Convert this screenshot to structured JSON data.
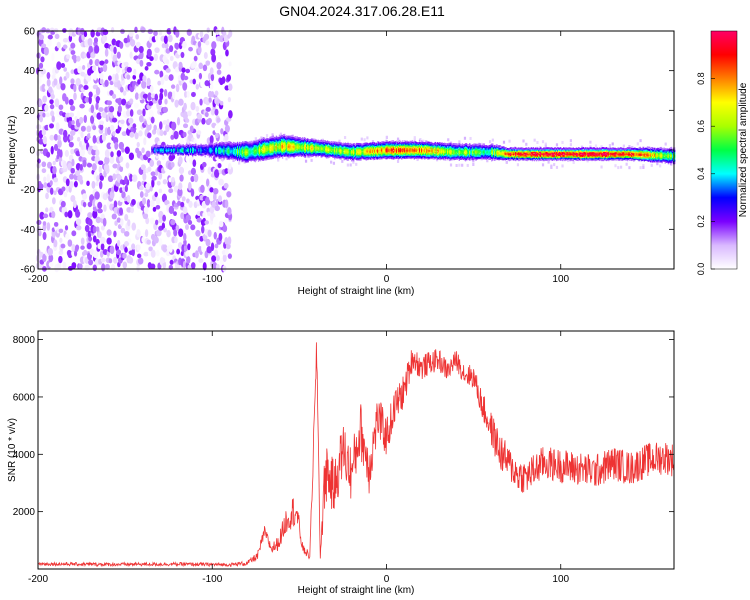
{
  "title": "GN04.2024.317.06.28.E11",
  "chart_data": [
    {
      "type": "heatmap",
      "xlabel": "Height of straight line (km)",
      "ylabel": "Frequency (Hz)",
      "xlim": [
        -200,
        165
      ],
      "ylim": [
        -60,
        60
      ],
      "xticks": [
        -200,
        -100,
        0,
        100
      ],
      "yticks": [
        -60,
        -40,
        -20,
        0,
        20,
        40,
        60
      ],
      "colorbar": {
        "label": "Normalized spectral amplitude",
        "range": [
          0,
          1
        ],
        "ticks": [
          0.0,
          0.2,
          0.4,
          0.6,
          0.8
        ],
        "tick_labels": [
          "0.0",
          "0.2",
          "0.4",
          "0.6",
          "0.8"
        ],
        "colors": [
          "#ffffff",
          "#d9b8ff",
          "#7a00ff",
          "#0000ff",
          "#00ffff",
          "#00ff44",
          "#aaff00",
          "#ffff00",
          "#ff7f00",
          "#ff0000",
          "#ff0066"
        ]
      },
      "noise_region": {
        "x": [
          -200,
          -90
        ],
        "y": [
          -60,
          60
        ],
        "amplitude": 0.15
      },
      "ridge": {
        "x": [
          -135,
          -120,
          -100,
          -80,
          -60,
          -40,
          -20,
          0,
          20,
          40,
          60,
          70,
          100,
          140,
          165
        ],
        "frequency": [
          0,
          0,
          0,
          -1,
          2,
          1,
          -1,
          0,
          0,
          -1,
          -1,
          -2,
          -2,
          -2,
          -3
        ],
        "amplitude": [
          0.3,
          0.4,
          0.35,
          0.55,
          0.7,
          0.65,
          0.6,
          0.85,
          0.8,
          0.6,
          0.5,
          0.95,
          0.97,
          0.95,
          0.5
        ],
        "halfwidth": [
          2,
          2,
          3,
          4,
          4,
          3,
          3,
          3,
          3,
          3,
          3,
          2,
          2,
          2,
          3
        ]
      }
    },
    {
      "type": "line",
      "xlabel": "Height of straight line (km)",
      "ylabel": "SNR (10 * v/v)",
      "xlim": [
        -200,
        165
      ],
      "ylim": [
        0,
        8300
      ],
      "xticks": [
        -200,
        -100,
        0,
        100
      ],
      "yticks": [
        2000,
        4000,
        6000,
        8000
      ],
      "color": "#ee3333",
      "series": [
        {
          "x": [
            -200,
            -160,
            -120,
            -90,
            -80,
            -74,
            -70,
            -66,
            -62,
            -57,
            -52,
            -48,
            -44,
            -40,
            -38,
            -35,
            -30,
            -25,
            -20,
            -15,
            -10,
            -5,
            0,
            5,
            10,
            15,
            20,
            25,
            30,
            35,
            40,
            45,
            50,
            55,
            60,
            65,
            70,
            75,
            80,
            90,
            100,
            110,
            120,
            130,
            140,
            150,
            160,
            165
          ],
          "y": [
            180,
            160,
            170,
            150,
            200,
            450,
            1300,
            700,
            900,
            1800,
            2100,
            700,
            450,
            7600,
            450,
            3500,
            2800,
            4200,
            3300,
            4900,
            3500,
            5300,
            4600,
            5700,
            6200,
            7400,
            7000,
            7200,
            7300,
            6900,
            7300,
            6800,
            6700,
            5700,
            4900,
            4100,
            3700,
            3300,
            3200,
            3700,
            3600,
            3500,
            3400,
            3700,
            3500,
            3800,
            3900,
            3800
          ],
          "noise": [
            60,
            60,
            60,
            60,
            80,
            150,
            200,
            200,
            250,
            500,
            600,
            150,
            150,
            800,
            150,
            1200,
            900,
            1000,
            1000,
            1000,
            900,
            800,
            700,
            600,
            600,
            450,
            450,
            400,
            400,
            350,
            350,
            400,
            400,
            500,
            600,
            700,
            600,
            600,
            600,
            600,
            600,
            600,
            600,
            600,
            600,
            600,
            600,
            600
          ]
        }
      ]
    }
  ]
}
